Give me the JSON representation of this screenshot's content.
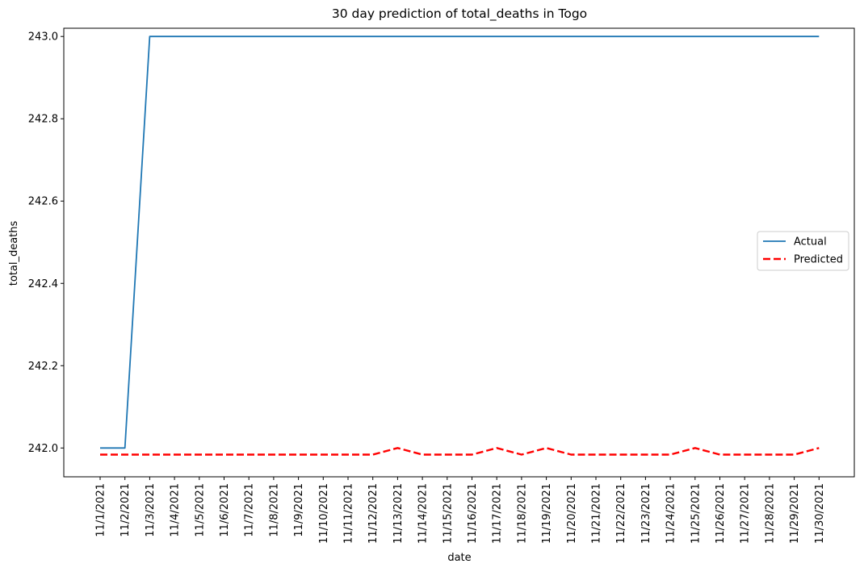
{
  "chart_data": {
    "type": "line",
    "title": "30 day prediction of total_deaths in Togo",
    "xlabel": "date",
    "ylabel": "total_deaths",
    "x": [
      "11/1/2021",
      "11/2/2021",
      "11/3/2021",
      "11/4/2021",
      "11/5/2021",
      "11/6/2021",
      "11/7/2021",
      "11/8/2021",
      "11/9/2021",
      "11/10/2021",
      "11/11/2021",
      "11/12/2021",
      "11/13/2021",
      "11/14/2021",
      "11/15/2021",
      "11/16/2021",
      "11/17/2021",
      "11/18/2021",
      "11/19/2021",
      "11/20/2021",
      "11/21/2021",
      "11/22/2021",
      "11/23/2021",
      "11/24/2021",
      "11/25/2021",
      "11/26/2021",
      "11/27/2021",
      "11/28/2021",
      "11/29/2021",
      "11/30/2021"
    ],
    "ylim": [
      241.93,
      243.02
    ],
    "yticks": [
      242.0,
      242.2,
      242.4,
      242.6,
      242.8,
      243.0
    ],
    "ytick_labels": [
      "242.0",
      "242.2",
      "242.4",
      "242.6",
      "242.8",
      "243.0"
    ],
    "grid": false,
    "legend_position": "center-right",
    "series": [
      {
        "name": "Actual",
        "color": "#1f77b4",
        "style": "solid",
        "values": [
          242.0,
          242.0,
          243.0,
          243.0,
          243.0,
          243.0,
          243.0,
          243.0,
          243.0,
          243.0,
          243.0,
          243.0,
          243.0,
          243.0,
          243.0,
          243.0,
          243.0,
          243.0,
          243.0,
          243.0,
          243.0,
          243.0,
          243.0,
          243.0,
          243.0,
          243.0,
          243.0,
          243.0,
          243.0,
          243.0
        ]
      },
      {
        "name": "Predicted",
        "color": "#ff0000",
        "style": "dashed",
        "values": [
          241.984,
          241.984,
          241.984,
          241.984,
          241.984,
          241.984,
          241.984,
          241.984,
          241.984,
          241.984,
          241.984,
          241.984,
          242.0,
          241.984,
          241.984,
          241.984,
          242.0,
          241.984,
          242.0,
          241.984,
          241.984,
          241.984,
          241.984,
          241.984,
          242.0,
          241.984,
          241.984,
          241.984,
          241.984,
          242.0
        ]
      }
    ]
  }
}
